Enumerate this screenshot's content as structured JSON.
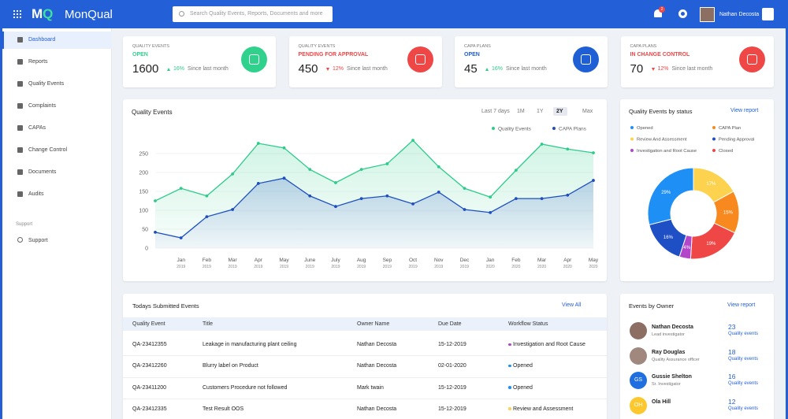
{
  "header": {
    "brand": "MonQual",
    "search_placeholder": "Search Quality Events, Reports, Documents and more",
    "notifications": "2",
    "user": "Nathan Decosta"
  },
  "sidebar": {
    "items": [
      "Dashboard",
      "Reports",
      "Quality Events",
      "Complaints",
      "CAPAs",
      "Change Control",
      "Documents",
      "Audits"
    ],
    "active": 0,
    "section": "Support",
    "support_items": [
      "Support"
    ]
  },
  "kpis": [
    {
      "label": "QUALITY EVENTS",
      "status": "OPEN",
      "value": 1600,
      "change": "16%",
      "trend": "up",
      "note": "Since last month",
      "color": "#2fd18c"
    },
    {
      "label": "QUALITY EVENTS",
      "status": "PENDING FOR APPROVAL",
      "value": 450,
      "change": "12%",
      "trend": "down",
      "note": "Since last month",
      "color": "#ef4646"
    },
    {
      "label": "CAPA PLANS",
      "status": "OPEN",
      "value": 45,
      "change": "16%",
      "trend": "up",
      "note": "Since last month",
      "color": "#1f5fd6"
    },
    {
      "label": "CAPA PLANS",
      "status": "IN CHANGE CONTROL",
      "value": 70,
      "change": "12%",
      "trend": "down",
      "note": "Since last month",
      "color": "#ef4646"
    }
  ],
  "chart_data": [
    {
      "type": "line",
      "title": "Quality Events",
      "ranges": [
        "Last 7 days",
        "1M",
        "1Y",
        "2Y",
        "Max"
      ],
      "active_range": 3,
      "categories": [
        null,
        "Jan",
        "Feb",
        "Mar",
        "Apr",
        "May",
        "June",
        "July",
        "Aug",
        "Sep",
        "Oct",
        "Nov",
        "Dec",
        "Jan",
        "Feb",
        "Mar",
        "Apr",
        "May"
      ],
      "category_years": [
        null,
        "2019",
        "2019",
        "2019",
        "2019",
        "2019",
        "2019",
        "2019",
        "2019",
        "2019",
        "2019",
        "2019",
        "2019",
        "2020",
        "2020",
        "2020",
        "2020",
        "2020"
      ],
      "series": [
        {
          "name": "Quality Events",
          "color": "#2ecc8a",
          "values": [
            125,
            158,
            138,
            196,
            277,
            265,
            208,
            173,
            208,
            223,
            285,
            215,
            158,
            135,
            206,
            275,
            262,
            252
          ]
        },
        {
          "name": "CAPA Plans",
          "color": "#1f4fbf",
          "values": [
            42,
            27,
            83,
            102,
            171,
            185,
            138,
            110,
            131,
            138,
            117,
            148,
            102,
            94,
            131,
            131,
            140,
            179
          ]
        }
      ],
      "ylim": [
        0,
        300
      ],
      "yticks": [
        0,
        50,
        100,
        150,
        200,
        250
      ],
      "grid": true,
      "legend": "top-right"
    },
    {
      "type": "pie",
      "title": "Quality Events by status",
      "link": "View report",
      "categories": [
        "Review And Assessment",
        "CAPA Plan",
        "Closed",
        "Investigation and Root Cause",
        "Pending Approval",
        "Opened"
      ],
      "values": [
        17,
        15,
        19,
        4,
        16,
        29
      ],
      "value_labels": [
        "17%",
        "15%",
        "19%",
        "4%",
        "16%",
        "29%"
      ],
      "colors": [
        "#fdd24e",
        "#f7891e",
        "#ef4646",
        "#b347c9",
        "#1f4fc4",
        "#1e90f5"
      ],
      "donut": true
    }
  ],
  "table": {
    "title": "Todays Submitted Events",
    "link": "View All",
    "columns": [
      "Quality Event",
      "Title",
      "Owner Name",
      "Due Date",
      "Workflow Status"
    ],
    "rows": [
      [
        "QA-23412355",
        "Leakage in manufacturing plant ceiling",
        "Nathan Decosta",
        "15-12-2019",
        "Investigation and Root Cause"
      ],
      [
        "QA-23412260",
        "Blurry label on Product",
        "Nathan Decosta",
        "02-01-2020",
        "Opened"
      ],
      [
        "QA-23411200",
        "Customers Procedure not followed",
        "Mark twain",
        "15-12-2019",
        "Opened"
      ],
      [
        "QA-23412335",
        "Test Result OOS",
        "Nathan Decosta",
        "15-12-2019",
        "Review and Assessment"
      ]
    ],
    "status_colors": [
      "#b347c9",
      "#1e90f5",
      "#1e90f5",
      "#fdd24e"
    ]
  },
  "owners": {
    "title": "Events by Owner",
    "link": "View report",
    "people": [
      {
        "name": "Nathan Decosta",
        "role": "Lead investigator",
        "count": 23,
        "unit": "Quality events",
        "color": "#8d6e63"
      },
      {
        "name": "Ray Douglas",
        "role": "Quality Assurance officer",
        "count": 18,
        "unit": "Quality events",
        "color": "#a1887f"
      },
      {
        "name": "Gussie Shelton",
        "initials": "GS",
        "role": "Sr. Investigator",
        "count": 16,
        "unit": "Quality events",
        "color": "#1f6fe0"
      },
      {
        "name": "Ola Hill",
        "initials": "OH",
        "count": 12,
        "unit": "Quality events",
        "color": "#fdc72e"
      }
    ]
  }
}
